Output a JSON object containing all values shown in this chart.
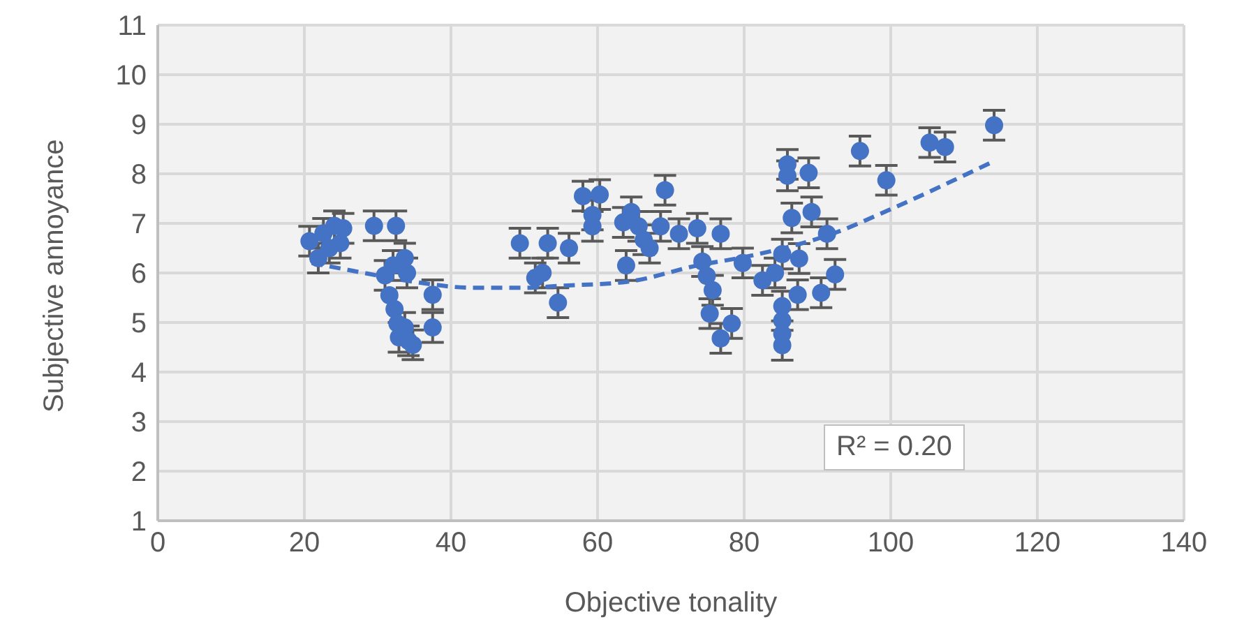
{
  "chart_data": {
    "type": "scatter",
    "xlabel": "Objective tonality",
    "ylabel": "Subjective annoyance",
    "xlim": [
      0,
      140
    ],
    "xticks": [
      0,
      20,
      40,
      60,
      80,
      100,
      120,
      140
    ],
    "ylim": [
      1,
      11
    ],
    "yticks": [
      1,
      2,
      3,
      4,
      5,
      6,
      7,
      8,
      9,
      10,
      11
    ],
    "grid": true,
    "annotations": [
      "R² = 0.20"
    ],
    "series": [
      {
        "color": "#4472c4",
        "marker": "circle",
        "x": [
          20.7,
          21.9,
          22.6,
          23.4,
          24.1,
          24.9,
          25.3,
          29.5,
          32.5,
          31.0,
          32.1,
          33.7,
          34.0,
          31.6,
          32.3,
          32.7,
          32.9,
          33.7,
          34.2,
          34.8,
          37.5,
          37.5,
          49.4,
          51.5,
          52.5,
          53.2,
          54.6,
          56.1,
          58.0,
          60.3,
          59.3,
          59.3,
          63.5,
          63.9,
          64.6,
          65.6,
          66.3,
          67.1,
          68.6,
          69.2,
          71.1,
          73.6,
          74.3,
          74.9,
          75.7,
          75.3,
          76.8,
          78.3,
          76.8,
          79.8,
          82.5,
          84.2,
          85.2,
          85.2,
          85.2,
          85.2,
          85.2,
          85.9,
          85.9,
          86.5,
          87.5,
          87.3,
          88.8,
          89.2,
          90.5,
          91.3,
          92.4,
          95.8,
          99.4,
          105.3,
          107.4,
          114.1
        ],
        "values": [
          6.64,
          6.3,
          6.8,
          6.5,
          6.95,
          6.6,
          6.9,
          6.95,
          6.95,
          5.95,
          6.15,
          6.3,
          6.0,
          5.55,
          5.27,
          4.98,
          4.7,
          4.9,
          4.63,
          4.55,
          4.9,
          5.56,
          6.6,
          5.9,
          6.0,
          6.6,
          5.4,
          6.5,
          7.55,
          7.58,
          7.17,
          6.94,
          7.02,
          6.15,
          7.23,
          6.94,
          6.67,
          6.5,
          6.94,
          7.67,
          6.79,
          6.9,
          6.23,
          5.94,
          5.65,
          5.18,
          4.68,
          4.98,
          6.79,
          6.2,
          5.85,
          6.0,
          6.38,
          5.33,
          5.04,
          4.77,
          4.54,
          8.19,
          7.96,
          7.11,
          6.29,
          5.56,
          8.02,
          7.23,
          5.6,
          6.79,
          5.97,
          8.46,
          7.87,
          8.63,
          8.54,
          8.98
        ],
        "errors": [
          0.3,
          0.3,
          0.3,
          0.3,
          0.3,
          0.3,
          0.3,
          0.3,
          0.3,
          0.3,
          0.3,
          0.3,
          0.3,
          null,
          null,
          null,
          0.3,
          0.3,
          0.3,
          0.3,
          0.3,
          0.3,
          0.3,
          0.3,
          0.3,
          0.3,
          0.3,
          0.3,
          0.3,
          0.3,
          0.3,
          0.3,
          0.3,
          0.3,
          0.3,
          0.3,
          0.3,
          0.3,
          0.3,
          0.3,
          0.3,
          0.3,
          0.3,
          null,
          0.3,
          0.3,
          0.3,
          0.3,
          0.3,
          0.3,
          0.3,
          0.3,
          0.3,
          0.3,
          null,
          null,
          0.3,
          0.3,
          0.3,
          0.3,
          0.3,
          0.3,
          0.3,
          0.3,
          0.3,
          0.3,
          0.3,
          0.3,
          0.3,
          0.3,
          0.3,
          0.3
        ]
      },
      {
        "type": "line",
        "color": "#4472c4",
        "marker": "none",
        "line_style": "dashed",
        "x": [
          21,
          26,
          35,
          43,
          50,
          55,
          64,
          73.6,
          81,
          92.6,
          99.6,
          114
        ],
        "values": [
          6.2,
          6.06,
          5.82,
          5.7,
          5.7,
          5.74,
          5.82,
          6.15,
          6.35,
          6.82,
          7.26,
          8.25
        ]
      }
    ]
  }
}
